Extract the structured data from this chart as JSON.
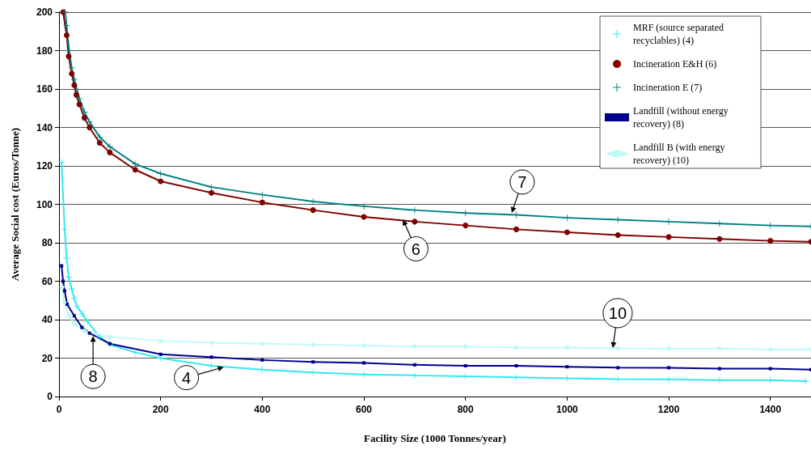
{
  "chart_data": {
    "type": "line",
    "xlabel": "Facility Size (1000 Tonnes/year)",
    "ylabel": "Average Social cost (Euros/Tonne)",
    "xlim": [
      0,
      1480
    ],
    "xticks": [
      0,
      200,
      400,
      600,
      800,
      1000,
      1200,
      1400
    ],
    "ylim": [
      0,
      200
    ],
    "yticks": [
      0,
      20,
      40,
      60,
      80,
      100,
      120,
      140,
      160,
      180,
      200
    ],
    "grid": "y",
    "legend": "top right",
    "series": [
      {
        "name": "MRF (source separated recyclables) (4)",
        "color": "#33e8f0",
        "marker": "cross",
        "x": [
          5,
          11,
          15,
          19,
          25,
          30,
          35,
          46,
          56,
          80,
          100,
          150,
          200,
          300,
          400,
          500,
          600,
          700,
          800,
          900,
          1000,
          1100,
          1200,
          1300,
          1400,
          1470
        ],
        "values": [
          122,
          87,
          72,
          62,
          56,
          51,
          47,
          43,
          39,
          31,
          27,
          23,
          20,
          16,
          14,
          12.5,
          11.5,
          11,
          10.5,
          10,
          9.5,
          9,
          9,
          8.5,
          8.5,
          8
        ]
      },
      {
        "name": "Incineration E&H (6)",
        "color": "#800000",
        "marker": "circle",
        "x": [
          8,
          15,
          19,
          25,
          30,
          34,
          40,
          50,
          60,
          80,
          100,
          150,
          200,
          300,
          400,
          500,
          600,
          700,
          800,
          900,
          1000,
          1100,
          1200,
          1300,
          1400,
          1480
        ],
        "values": [
          200,
          188,
          177,
          168,
          162,
          157,
          152,
          145,
          140,
          132,
          127,
          118,
          112,
          106,
          101,
          97,
          93.5,
          91,
          89,
          87,
          85.5,
          84,
          83,
          82,
          81,
          80.5
        ]
      },
      {
        "name": "Incineration E (7)",
        "color": "#008080",
        "marker": "cross",
        "x": [
          12,
          15,
          20,
          25,
          30,
          40,
          50,
          60,
          80,
          100,
          150,
          200,
          300,
          400,
          500,
          600,
          700,
          800,
          900,
          1000,
          1100,
          1200,
          1300,
          1400,
          1480
        ],
        "values": [
          200,
          193,
          180,
          171,
          165,
          155,
          148,
          143,
          135,
          130,
          121,
          116,
          109,
          105,
          101.5,
          99,
          97,
          95.5,
          94.5,
          93,
          92,
          91,
          90,
          89,
          88.5
        ]
      },
      {
        "name": "Landfill (without energy recovery) (8)",
        "color": "#000090",
        "marker": "square",
        "x": [
          5,
          8,
          11,
          16,
          30,
          45,
          60,
          100,
          200,
          300,
          400,
          500,
          600,
          700,
          800,
          900,
          1000,
          1100,
          1200,
          1300,
          1400,
          1480
        ],
        "values": [
          68,
          60,
          55,
          48,
          42,
          36,
          33,
          27.5,
          22,
          20.5,
          19,
          18,
          17.5,
          16.5,
          16,
          16,
          15.5,
          15,
          15,
          14.5,
          14.5,
          14
        ]
      },
      {
        "name": "Landfill B (with energy recovery) (10)",
        "color": "#c0f8f8",
        "marker": "diamond",
        "x": [
          6,
          10,
          20,
          30,
          50,
          100,
          200,
          300,
          400,
          500,
          600,
          700,
          800,
          900,
          1000,
          1100,
          1200,
          1300,
          1400,
          1480
        ],
        "values": [
          57,
          49,
          42,
          38,
          34,
          31,
          29,
          28,
          27.5,
          27,
          26.5,
          26,
          26,
          25.5,
          25.5,
          25,
          25,
          25,
          24.5,
          24.5
        ]
      }
    ],
    "annotations": [
      {
        "text": "7",
        "x": 891,
        "y": 95.6
      },
      {
        "text": "6",
        "x": 677,
        "y": 92
      },
      {
        "text": "10",
        "x": 1090,
        "y": 25.3
      },
      {
        "text": "8",
        "x": 67,
        "y": 31.5
      },
      {
        "text": "4",
        "x": 324,
        "y": 15.3
      }
    ]
  }
}
